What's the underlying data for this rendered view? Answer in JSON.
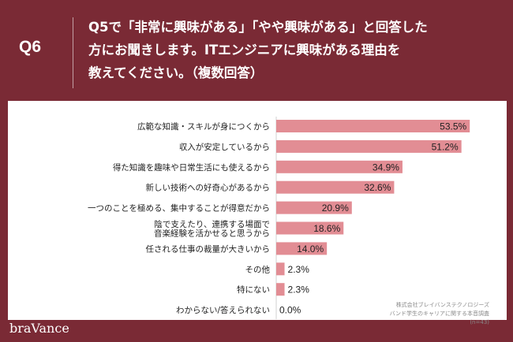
{
  "header": {
    "question_label": "Q6",
    "question_lines": [
      "Q5で「非常に興味がある」「やや興味がある」と回答した",
      "方にお聞きします。ITエンジニアに興味がある理由を",
      "教えてください。（複数回答）"
    ]
  },
  "footer": {
    "brand": "braVance",
    "source_lines": [
      "株式会社ブレイバンステクノロジーズ",
      "バンド学生のキャリアに関する本音調査",
      "(n=43)"
    ]
  },
  "colors": {
    "background": "#7a2a35",
    "bar": "#e28d94",
    "label": "#222222",
    "value": "#222222"
  },
  "chart_data": {
    "type": "bar",
    "orientation": "horizontal",
    "categories": [
      "広範な知識・スキルが身につくから",
      "収入が安定しているから",
      "得た知識を趣味や日常生活にも使えるから",
      "新しい技術への好奇心があるから",
      "一つのことを極める、集中することが得意だから",
      "陰で支えたり、連携する場面で\n音楽経験を活かせると思うから",
      "任される仕事の裁量が大きいから",
      "その他",
      "特にない",
      "わからない/答えられない"
    ],
    "values": [
      53.5,
      51.2,
      34.9,
      32.6,
      20.9,
      18.6,
      14.0,
      2.3,
      2.3,
      0.0
    ],
    "value_labels": [
      "53.5%",
      "51.2%",
      "34.9%",
      "32.6%",
      "20.9%",
      "18.6%",
      "14.0%",
      "2.3%",
      "2.3%",
      "0.0%"
    ],
    "xlim": [
      0,
      60
    ],
    "grid": false,
    "legend": "none"
  }
}
